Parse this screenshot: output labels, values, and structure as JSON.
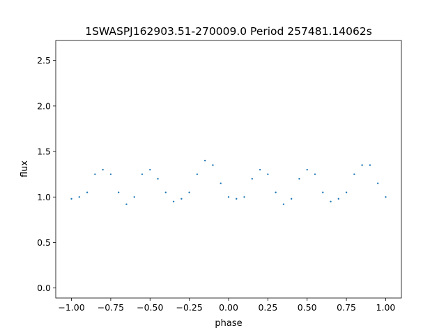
{
  "chart_data": {
    "type": "scatter",
    "title": "1SWASPJ162903.51-270009.0 Period 257481.14062s",
    "xlabel": "phase",
    "ylabel": "flux",
    "xlim": [
      -1.1,
      1.1
    ],
    "ylim": [
      -0.11,
      2.72
    ],
    "xticks": [
      -1.0,
      -0.75,
      -0.5,
      -0.25,
      0.0,
      0.25,
      0.5,
      0.75,
      1.0
    ],
    "xtick_labels": [
      "−1.00",
      "−0.75",
      "−0.50",
      "−0.25",
      "0.00",
      "0.25",
      "0.50",
      "0.75",
      "1.00"
    ],
    "yticks": [
      0.0,
      0.5,
      1.0,
      1.5,
      2.0,
      2.5
    ],
    "ytick_labels": [
      "0.0",
      "0.5",
      "1.0",
      "1.5",
      "2.0",
      "2.5"
    ],
    "grid": false,
    "marker_color": "#1f77b4",
    "series": [
      {
        "x": [
          -1.0,
          -0.95,
          -0.9,
          -0.85,
          -0.8,
          -0.75,
          -0.7,
          -0.65,
          -0.6,
          -0.55,
          -0.5,
          -0.45,
          -0.4,
          -0.35,
          -0.3,
          -0.25,
          -0.2,
          -0.15,
          -0.1,
          -0.05,
          0.0,
          0.05,
          0.1,
          0.15,
          0.2,
          0.25,
          0.3,
          0.35,
          0.4,
          0.45,
          0.5,
          0.55,
          0.6,
          0.65,
          0.7,
          0.75,
          0.8,
          0.85,
          0.9,
          0.95,
          1.0
        ],
        "y": [
          0.98,
          1.0,
          1.05,
          1.25,
          1.3,
          1.25,
          1.05,
          0.92,
          1.0,
          1.25,
          1.3,
          1.2,
          1.05,
          0.95,
          0.98,
          1.05,
          1.25,
          1.4,
          1.35,
          1.15,
          1.0,
          0.98,
          1.0,
          1.2,
          1.3,
          1.25,
          1.05,
          0.92,
          0.98,
          1.2,
          1.3,
          1.25,
          1.05,
          0.95,
          0.98,
          1.05,
          1.25,
          1.35,
          1.35,
          1.15,
          1.0
        ]
      }
    ]
  }
}
